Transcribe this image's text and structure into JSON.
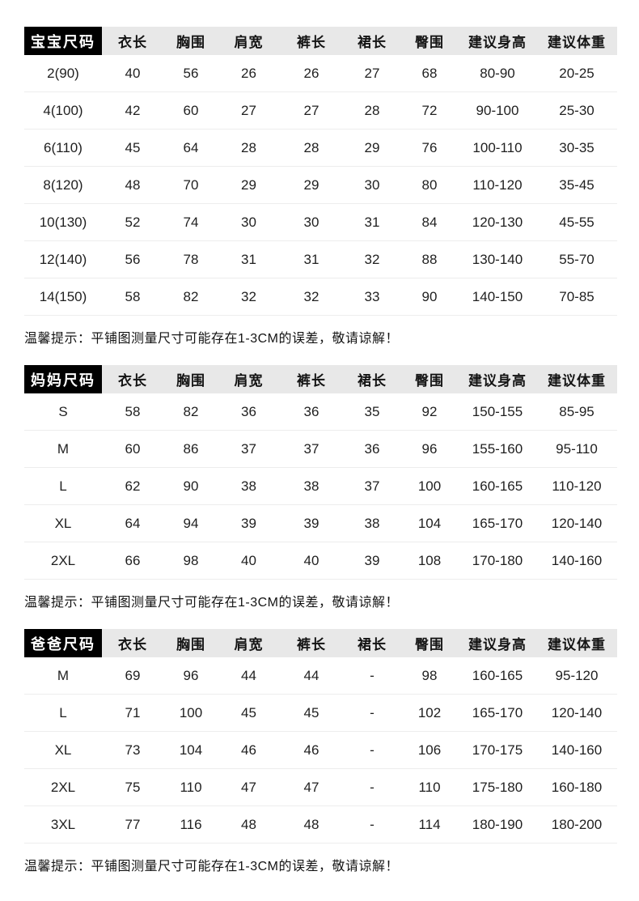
{
  "colors": {
    "title_bg": "#000000",
    "title_text": "#ffffff",
    "header_bg": "#e8e8e8",
    "body_text": "#1f1f1f",
    "divider": "#ededed"
  },
  "columns": [
    "衣长",
    "胸围",
    "肩宽",
    "裤长",
    "裙长",
    "臀围",
    "建议身高",
    "建议体重"
  ],
  "tables": [
    {
      "title": "宝宝尺码",
      "rows": [
        [
          "2(90)",
          "40",
          "56",
          "26",
          "26",
          "27",
          "68",
          "80-90",
          "20-25"
        ],
        [
          "4(100)",
          "42",
          "60",
          "27",
          "27",
          "28",
          "72",
          "90-100",
          "25-30"
        ],
        [
          "6(110)",
          "45",
          "64",
          "28",
          "28",
          "29",
          "76",
          "100-110",
          "30-35"
        ],
        [
          "8(120)",
          "48",
          "70",
          "29",
          "29",
          "30",
          "80",
          "110-120",
          "35-45"
        ],
        [
          "10(130)",
          "52",
          "74",
          "30",
          "30",
          "31",
          "84",
          "120-130",
          "45-55"
        ],
        [
          "12(140)",
          "56",
          "78",
          "31",
          "31",
          "32",
          "88",
          "130-140",
          "55-70"
        ],
        [
          "14(150)",
          "58",
          "82",
          "32",
          "32",
          "33",
          "90",
          "140-150",
          "70-85"
        ]
      ],
      "note": "温馨提示：平铺图测量尺寸可能存在1-3CM的误差，敬请谅解！"
    },
    {
      "title": "妈妈尺码",
      "rows": [
        [
          "S",
          "58",
          "82",
          "36",
          "36",
          "35",
          "92",
          "150-155",
          "85-95"
        ],
        [
          "M",
          "60",
          "86",
          "37",
          "37",
          "36",
          "96",
          "155-160",
          "95-110"
        ],
        [
          "L",
          "62",
          "90",
          "38",
          "38",
          "37",
          "100",
          "160-165",
          "110-120"
        ],
        [
          "XL",
          "64",
          "94",
          "39",
          "39",
          "38",
          "104",
          "165-170",
          "120-140"
        ],
        [
          "2XL",
          "66",
          "98",
          "40",
          "40",
          "39",
          "108",
          "170-180",
          "140-160"
        ]
      ],
      "note": "温馨提示：平铺图测量尺寸可能存在1-3CM的误差，敬请谅解！"
    },
    {
      "title": "爸爸尺码",
      "rows": [
        [
          "M",
          "69",
          "96",
          "44",
          "44",
          "-",
          "98",
          "160-165",
          "95-120"
        ],
        [
          "L",
          "71",
          "100",
          "45",
          "45",
          "-",
          "102",
          "165-170",
          "120-140"
        ],
        [
          "XL",
          "73",
          "104",
          "46",
          "46",
          "-",
          "106",
          "170-175",
          "140-160"
        ],
        [
          "2XL",
          "75",
          "110",
          "47",
          "47",
          "-",
          "110",
          "175-180",
          "160-180"
        ],
        [
          "3XL",
          "77",
          "116",
          "48",
          "48",
          "-",
          "114",
          "180-190",
          "180-200"
        ]
      ],
      "note": "温馨提示：平铺图测量尺寸可能存在1-3CM的误差，敬请谅解！"
    }
  ]
}
